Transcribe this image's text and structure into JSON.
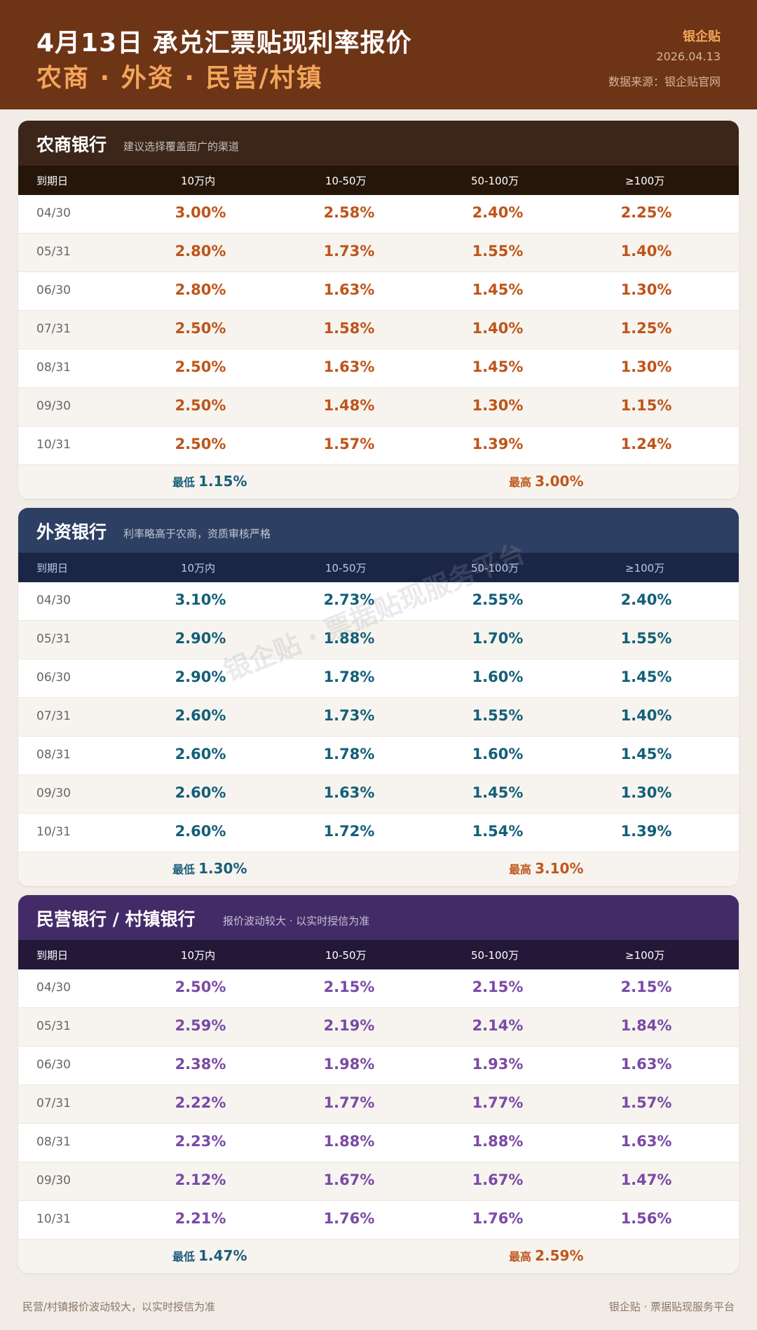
{
  "header": {
    "title": "4月13日 承兑汇票贴现利率报价",
    "subtitle": "农商 · 外资 · 民营/村镇",
    "brand": "银企贴",
    "date": "2026.04.13",
    "source": "数据来源：银企贴官网"
  },
  "columns": [
    "到期日",
    "10万内",
    "10-50万",
    "50-100万",
    "≥100万"
  ],
  "sections": [
    {
      "title": "农商银行",
      "subtitle": "建议选择覆盖面广的渠道",
      "rows": [
        [
          "04/30",
          "3.00%",
          "2.58%",
          "2.40%",
          "2.25%"
        ],
        [
          "05/31",
          "2.80%",
          "1.73%",
          "1.55%",
          "1.40%"
        ],
        [
          "06/30",
          "2.80%",
          "1.63%",
          "1.45%",
          "1.30%"
        ],
        [
          "07/31",
          "2.50%",
          "1.58%",
          "1.40%",
          "1.25%"
        ],
        [
          "08/31",
          "2.50%",
          "1.63%",
          "1.45%",
          "1.30%"
        ],
        [
          "09/30",
          "2.50%",
          "1.48%",
          "1.30%",
          "1.15%"
        ],
        [
          "10/31",
          "2.50%",
          "1.57%",
          "1.39%",
          "1.24%"
        ]
      ],
      "min_label": "最低",
      "min_value": "1.15%",
      "max_label": "最高",
      "max_value": "3.00%"
    },
    {
      "title": "外资银行",
      "subtitle": "利率略高于农商，资质审核严格",
      "rows": [
        [
          "04/30",
          "3.10%",
          "2.73%",
          "2.55%",
          "2.40%"
        ],
        [
          "05/31",
          "2.90%",
          "1.88%",
          "1.70%",
          "1.55%"
        ],
        [
          "06/30",
          "2.90%",
          "1.78%",
          "1.60%",
          "1.45%"
        ],
        [
          "07/31",
          "2.60%",
          "1.73%",
          "1.55%",
          "1.40%"
        ],
        [
          "08/31",
          "2.60%",
          "1.78%",
          "1.60%",
          "1.45%"
        ],
        [
          "09/30",
          "2.60%",
          "1.63%",
          "1.45%",
          "1.30%"
        ],
        [
          "10/31",
          "2.60%",
          "1.72%",
          "1.54%",
          "1.39%"
        ]
      ],
      "min_label": "最低",
      "min_value": "1.30%",
      "max_label": "最高",
      "max_value": "3.10%"
    },
    {
      "title": "民营银行 / 村镇银行",
      "subtitle": "报价波动较大 · 以实时授信为准",
      "rows": [
        [
          "04/30",
          "2.50%",
          "2.15%",
          "2.15%",
          "2.15%"
        ],
        [
          "05/31",
          "2.59%",
          "2.19%",
          "2.14%",
          "1.84%"
        ],
        [
          "06/30",
          "2.38%",
          "1.98%",
          "1.93%",
          "1.63%"
        ],
        [
          "07/31",
          "2.22%",
          "1.77%",
          "1.77%",
          "1.57%"
        ],
        [
          "08/31",
          "2.23%",
          "1.88%",
          "1.88%",
          "1.63%"
        ],
        [
          "09/30",
          "2.12%",
          "1.67%",
          "1.67%",
          "1.47%"
        ],
        [
          "10/31",
          "2.21%",
          "1.76%",
          "1.76%",
          "1.56%"
        ]
      ],
      "min_label": "最低",
      "min_value": "1.47%",
      "max_label": "最高",
      "max_value": "2.59%"
    }
  ],
  "watermark": "银企贴 · 票据贴现服务平台",
  "footer": {
    "left": "民营/村镇报价波动较大，以实时授信为准",
    "right": "银企贴 · 票据贴现服务平台"
  }
}
